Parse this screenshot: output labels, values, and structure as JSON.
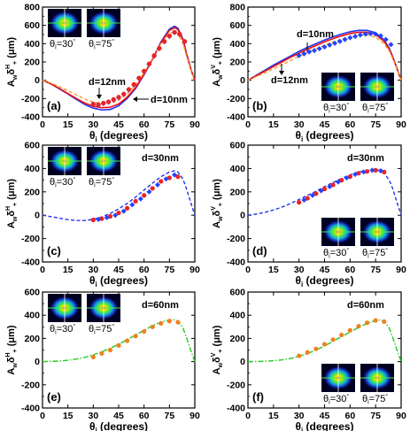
{
  "figure": {
    "panels": [
      {
        "label": "(a)",
        "ylabel": "A",
        "ylabel_sub": "w",
        "ylabel_mid": "δ",
        "ylabel_sup": "H",
        "ylabel_sub2": "+",
        "ylabel_unit": " (μm)",
        "xlabel": "θ",
        "xlabel_sub": "i",
        "xlabel_unit": " (degrees)"
      },
      {
        "label": "(b)",
        "ylabel": "A",
        "ylabel_sub": "w",
        "ylabel_mid": "δ",
        "ylabel_sup": "V",
        "ylabel_sub2": "+",
        "ylabel_unit": " (μm)",
        "xlabel": "θ",
        "xlabel_sub": "i",
        "xlabel_unit": " (degrees)"
      },
      {
        "label": "(c)",
        "ylabel": "A",
        "ylabel_sub": "w",
        "ylabel_mid": "δ",
        "ylabel_sup": "H",
        "ylabel_sub2": "+",
        "ylabel_unit": " (μm)",
        "xlabel": "θ",
        "xlabel_sub": "i",
        "xlabel_unit": " (degrees)"
      },
      {
        "label": "(d)",
        "ylabel": "A",
        "ylabel_sub": "w",
        "ylabel_mid": "δ",
        "ylabel_sup": "V",
        "ylabel_sub2": "+",
        "ylabel_unit": " (μm)",
        "xlabel": "θ",
        "xlabel_sub": "i",
        "xlabel_unit": " (degrees)"
      },
      {
        "label": "(e)",
        "ylabel": "A",
        "ylabel_sub": "w",
        "ylabel_mid": "δ",
        "ylabel_sup": "H",
        "ylabel_sub2": "+",
        "ylabel_unit": " (μm)",
        "xlabel": "θ",
        "xlabel_sub": "i",
        "xlabel_unit": " (degrees)"
      },
      {
        "label": "(f)",
        "ylabel": "A",
        "ylabel_sub": "w",
        "ylabel_mid": "δ",
        "ylabel_sup": "V",
        "ylabel_sub2": "+",
        "ylabel_unit": " (μm)",
        "xlabel": "θ",
        "xlabel_sub": "i",
        "xlabel_unit": " (degrees)"
      }
    ],
    "inset_labels": [
      "θ",
      "i",
      "=30",
      "°",
      "θ",
      "i",
      "=75",
      "°"
    ],
    "colors": {
      "blue": "#2233ee",
      "red": "#ee1111",
      "orange": "#f0a030",
      "green": "#22cc22",
      "marker_red": "#ee2222",
      "marker_orange": "#f08020",
      "marker_blue": "#2244ff"
    }
  },
  "chart_data": [
    {
      "panel": "(a)",
      "type": "line",
      "xlabel": "θi (degrees)",
      "ylabel": "Awδ+H (μm)",
      "xlim": [
        0,
        90
      ],
      "ylim": [
        -400,
        800
      ],
      "xticks": [
        0,
        15,
        30,
        45,
        60,
        75,
        90
      ],
      "yticks": [
        -400,
        -200,
        0,
        200,
        400,
        600,
        800
      ],
      "annotations": [
        "d=12nm",
        "d=10nm"
      ],
      "series": [
        {
          "name": "d=12nm",
          "style": "solid",
          "color": "#2233ee",
          "x": [
            0,
            5,
            10,
            15,
            20,
            25,
            30,
            35,
            40,
            45,
            50,
            55,
            60,
            65,
            70,
            75,
            78,
            80,
            83,
            85,
            88,
            90
          ],
          "y": [
            0,
            -40,
            -95,
            -150,
            -210,
            -265,
            -305,
            -325,
            -320,
            -280,
            -200,
            -90,
            60,
            230,
            420,
            560,
            590,
            570,
            450,
            300,
            100,
            0
          ]
        },
        {
          "name": "d=10nm",
          "style": "solid",
          "color": "#ee1111",
          "x": [
            0,
            5,
            10,
            15,
            20,
            25,
            30,
            35,
            40,
            45,
            50,
            55,
            60,
            65,
            70,
            75,
            78,
            80,
            83,
            85,
            88,
            90
          ],
          "y": [
            0,
            -40,
            -90,
            -145,
            -200,
            -250,
            -285,
            -300,
            -295,
            -260,
            -185,
            -80,
            65,
            230,
            410,
            545,
            575,
            555,
            440,
            295,
            100,
            0
          ]
        },
        {
          "name": "",
          "style": "dashed",
          "color": "#f0a030",
          "x": [
            0,
            5,
            10,
            15,
            20,
            25,
            30,
            35,
            40,
            45,
            50,
            55,
            60,
            65,
            70,
            75,
            78,
            80,
            83,
            85,
            88,
            90
          ],
          "y": [
            0,
            -30,
            -70,
            -115,
            -160,
            -205,
            -240,
            -255,
            -250,
            -220,
            -150,
            -50,
            85,
            240,
            400,
            510,
            530,
            510,
            400,
            270,
            90,
            0
          ]
        },
        {
          "name": "",
          "style": "markers",
          "color": "#2244ff",
          "x": [
            30,
            33,
            36,
            39,
            42,
            45,
            48,
            51,
            54,
            57,
            60,
            63,
            66,
            69,
            72,
            75,
            78,
            81,
            84
          ],
          "y": [
            -265,
            -270,
            -255,
            -240,
            -215,
            -190,
            -155,
            -105,
            -50,
            20,
            95,
            175,
            265,
            345,
            420,
            480,
            520,
            500,
            420
          ]
        },
        {
          "name": "",
          "style": "markers",
          "color": "#ee2222",
          "x": [
            30,
            33,
            36,
            39,
            42,
            45,
            48,
            51,
            54,
            57,
            60,
            63,
            66,
            69,
            72,
            75,
            78,
            81,
            84
          ],
          "y": [
            -260,
            -265,
            -250,
            -235,
            -210,
            -185,
            -150,
            -100,
            -45,
            25,
            100,
            180,
            270,
            350,
            425,
            485,
            525,
            505,
            425
          ]
        }
      ]
    },
    {
      "panel": "(b)",
      "type": "line",
      "xlabel": "θi (degrees)",
      "ylabel": "Awδ+V (μm)",
      "xlim": [
        0,
        90
      ],
      "ylim": [
        -400,
        800
      ],
      "xticks": [
        0,
        15,
        30,
        45,
        60,
        75,
        90
      ],
      "yticks": [
        -400,
        -200,
        0,
        200,
        400,
        600,
        800
      ],
      "annotations": [
        "d=10nm",
        "d=12nm"
      ],
      "series": [
        {
          "name": "d=10nm",
          "style": "solid",
          "color": "#2233ee",
          "x": [
            0,
            5,
            10,
            15,
            20,
            25,
            30,
            35,
            40,
            45,
            50,
            55,
            60,
            65,
            70,
            75,
            80,
            83,
            85,
            87,
            89,
            90
          ],
          "y": [
            0,
            55,
            110,
            165,
            215,
            265,
            315,
            360,
            400,
            440,
            475,
            505,
            530,
            545,
            545,
            520,
            440,
            350,
            260,
            160,
            50,
            0
          ]
        },
        {
          "name": "d=12nm",
          "style": "solid",
          "color": "#ee1111",
          "x": [
            0,
            5,
            10,
            15,
            20,
            25,
            30,
            35,
            40,
            45,
            50,
            55,
            60,
            65,
            70,
            75,
            80,
            83,
            85,
            87,
            89,
            90
          ],
          "y": [
            0,
            50,
            100,
            150,
            200,
            250,
            295,
            340,
            380,
            420,
            455,
            485,
            510,
            525,
            525,
            500,
            425,
            340,
            255,
            155,
            50,
            0
          ]
        },
        {
          "name": "",
          "style": "dashed",
          "color": "#f0a030",
          "x": [
            0,
            5,
            10,
            15,
            20,
            25,
            30,
            35,
            40,
            45,
            50,
            55,
            60,
            65,
            70,
            75,
            80,
            83,
            85,
            87,
            89,
            90
          ],
          "y": [
            0,
            40,
            80,
            125,
            170,
            215,
            260,
            305,
            345,
            385,
            420,
            450,
            475,
            490,
            490,
            470,
            400,
            320,
            240,
            145,
            45,
            0
          ]
        },
        {
          "name": "",
          "style": "markers",
          "color": "#2244ff",
          "x": [
            30,
            33,
            36,
            39,
            42,
            45,
            48,
            51,
            54,
            57,
            60,
            63,
            66,
            69,
            72,
            75,
            78,
            81,
            84
          ],
          "y": [
            270,
            290,
            310,
            325,
            345,
            365,
            385,
            405,
            425,
            445,
            465,
            480,
            495,
            505,
            510,
            505,
            485,
            445,
            390
          ]
        }
      ]
    },
    {
      "panel": "(c)",
      "type": "line",
      "xlabel": "θi (degrees)",
      "ylabel": "Awδ+H (μm)",
      "xlim": [
        0,
        90
      ],
      "ylim": [
        -400,
        600
      ],
      "xticks": [
        0,
        15,
        30,
        45,
        60,
        75,
        90
      ],
      "yticks": [
        -400,
        -200,
        0,
        200,
        400,
        600
      ],
      "annotations": [
        "d=30nm"
      ],
      "series": [
        {
          "name": "d=30nm",
          "style": "dashed",
          "color": "#2233ee",
          "x": [
            0,
            5,
            10,
            15,
            20,
            25,
            30,
            35,
            40,
            45,
            50,
            55,
            60,
            65,
            70,
            75,
            78,
            80,
            83,
            85,
            88,
            90
          ],
          "y": [
            0,
            -12,
            -25,
            -38,
            -45,
            -45,
            -35,
            -15,
            15,
            55,
            100,
            155,
            215,
            275,
            330,
            370,
            380,
            370,
            310,
            230,
            90,
            0
          ]
        },
        {
          "name": "",
          "style": "markers",
          "color": "#ee2222",
          "x": [
            30,
            35,
            40,
            45,
            50,
            55,
            60,
            65,
            70,
            75,
            80
          ],
          "y": [
            -40,
            -30,
            -10,
            20,
            60,
            120,
            170,
            230,
            290,
            320,
            330
          ]
        },
        {
          "name": "",
          "style": "markers",
          "color": "#2244ff",
          "x": [
            33,
            38,
            43,
            48,
            53,
            58,
            63,
            68,
            73,
            78
          ],
          "y": [
            -35,
            -20,
            0,
            35,
            90,
            140,
            200,
            260,
            310,
            345
          ]
        }
      ]
    },
    {
      "panel": "(d)",
      "type": "line",
      "xlabel": "θi (degrees)",
      "ylabel": "Awδ+V (μm)",
      "xlim": [
        0,
        90
      ],
      "ylim": [
        -400,
        600
      ],
      "xticks": [
        0,
        15,
        30,
        45,
        60,
        75,
        90
      ],
      "yticks": [
        -400,
        -200,
        0,
        200,
        400,
        600
      ],
      "annotations": [
        "d=30nm"
      ],
      "series": [
        {
          "name": "d=30nm",
          "style": "dashed",
          "color": "#2233ee",
          "x": [
            0,
            5,
            10,
            15,
            20,
            25,
            30,
            35,
            40,
            45,
            50,
            55,
            60,
            65,
            70,
            75,
            78,
            80,
            83,
            85,
            88,
            90
          ],
          "y": [
            0,
            10,
            25,
            45,
            70,
            100,
            135,
            170,
            205,
            245,
            280,
            315,
            345,
            370,
            385,
            390,
            380,
            360,
            300,
            230,
            90,
            0
          ]
        },
        {
          "name": "",
          "style": "markers",
          "color": "#ee2222",
          "x": [
            30,
            35,
            40,
            45,
            50,
            55,
            60,
            65,
            70,
            75,
            80
          ],
          "y": [
            110,
            145,
            185,
            225,
            260,
            300,
            330,
            360,
            375,
            385,
            370
          ]
        },
        {
          "name": "",
          "style": "markers",
          "color": "#2244ff",
          "x": [
            33,
            38,
            43,
            48,
            53,
            58,
            63,
            68,
            73,
            78
          ],
          "y": [
            130,
            170,
            210,
            245,
            285,
            320,
            350,
            370,
            385,
            380
          ]
        }
      ]
    },
    {
      "panel": "(e)",
      "type": "line",
      "xlabel": "θi (degrees)",
      "ylabel": "Awδ+H (μm)",
      "xlim": [
        0,
        90
      ],
      "ylim": [
        -400,
        600
      ],
      "xticks": [
        0,
        15,
        30,
        45,
        60,
        75,
        90
      ],
      "yticks": [
        -400,
        -200,
        0,
        200,
        400,
        600
      ],
      "annotations": [
        "d=60nm"
      ],
      "series": [
        {
          "name": "d=60nm",
          "style": "dashdot",
          "color": "#22cc22",
          "x": [
            0,
            5,
            10,
            15,
            20,
            25,
            30,
            35,
            40,
            45,
            50,
            55,
            60,
            65,
            70,
            75,
            78,
            80,
            83,
            85,
            88,
            90
          ],
          "y": [
            0,
            2,
            5,
            12,
            22,
            37,
            58,
            85,
            115,
            150,
            190,
            230,
            270,
            310,
            340,
            360,
            360,
            350,
            290,
            210,
            80,
            0
          ]
        },
        {
          "name": "",
          "style": "markers",
          "color": "#f08020",
          "x": [
            30,
            35,
            40,
            45,
            50,
            55,
            60,
            65,
            70,
            75,
            80
          ],
          "y": [
            40,
            70,
            100,
            140,
            180,
            220,
            260,
            300,
            330,
            350,
            340
          ]
        }
      ]
    },
    {
      "panel": "(f)",
      "type": "line",
      "xlabel": "θi (degrees)",
      "ylabel": "Awδ+V (μm)",
      "xlim": [
        0,
        90
      ],
      "ylim": [
        -400,
        600
      ],
      "xticks": [
        0,
        15,
        30,
        45,
        60,
        75,
        90
      ],
      "yticks": [
        -400,
        -200,
        0,
        200,
        400,
        600
      ],
      "annotations": [
        "d=60nm"
      ],
      "series": [
        {
          "name": "d=60nm",
          "style": "dashdot",
          "color": "#22cc22",
          "x": [
            0,
            5,
            10,
            15,
            20,
            25,
            30,
            35,
            40,
            45,
            50,
            55,
            60,
            65,
            70,
            75,
            78,
            80,
            83,
            85,
            88,
            90
          ],
          "y": [
            0,
            1,
            3,
            8,
            15,
            27,
            45,
            70,
            100,
            135,
            175,
            215,
            255,
            295,
            330,
            355,
            360,
            350,
            290,
            210,
            80,
            0
          ]
        },
        {
          "name": "",
          "style": "markers",
          "color": "#f08020",
          "x": [
            30,
            35,
            40,
            45,
            50,
            55,
            60,
            65,
            70,
            75,
            80
          ],
          "y": [
            50,
            80,
            110,
            150,
            190,
            230,
            270,
            305,
            335,
            355,
            345
          ]
        }
      ]
    }
  ]
}
